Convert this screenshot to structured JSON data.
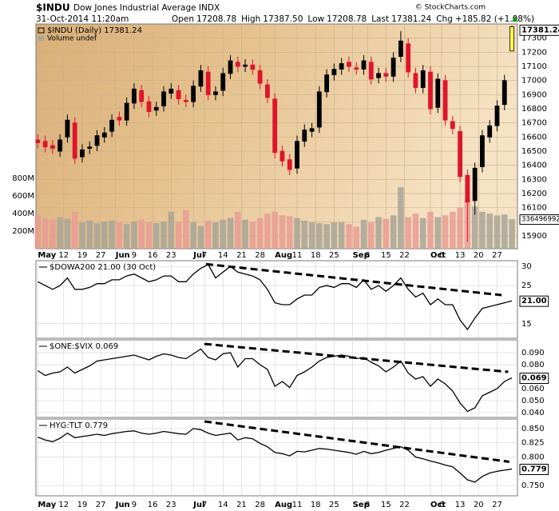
{
  "chart_data": [
    {
      "type": "candlestick",
      "title": "$INDU",
      "subtitle": "Dow Jones Industrial Average INDX",
      "date": "31-Oct-2014 11:20am",
      "quote": [
        {
          "label": "Open",
          "value": "17208.78"
        },
        {
          "label": "High",
          "value": "17387.50"
        },
        {
          "label": "Low",
          "value": "17208.78"
        },
        {
          "label": "Last",
          "value": "17381.24"
        },
        {
          "label": "Chg",
          "value": "+185.82 (+1.08%)"
        }
      ],
      "credit": "© StockCharts.com",
      "legend": [
        "$INDU (Daily) 17381.24",
        "Volume undef"
      ],
      "x": [
        0,
        2,
        4,
        6,
        8,
        10,
        12,
        14,
        16,
        18,
        20,
        22,
        24,
        26,
        28,
        30,
        32,
        34,
        36,
        38,
        40,
        42,
        44,
        46,
        48,
        50,
        52,
        54,
        56,
        58,
        60,
        62,
        64,
        66,
        68,
        70,
        72,
        74,
        76,
        78,
        80,
        82,
        84,
        86,
        88,
        90,
        92,
        94,
        96,
        98,
        100,
        102,
        104,
        106,
        108,
        110,
        112,
        114,
        116,
        118,
        120,
        122,
        124,
        126,
        128
      ],
      "xlim": [
        -0.5,
        129.5
      ],
      "xticks": [
        {
          "value": 0,
          "label": "May"
        },
        {
          "value": 7,
          "label": "12"
        },
        {
          "value": 12,
          "label": "19"
        },
        {
          "value": 17,
          "label": "27"
        },
        {
          "value": 21,
          "label": "Jun"
        },
        {
          "value": 26,
          "label": "9"
        },
        {
          "value": 31,
          "label": "16"
        },
        {
          "value": 36,
          "label": "23"
        },
        {
          "value": 42,
          "label": "Jul"
        },
        {
          "value": 45,
          "label": "7"
        },
        {
          "value": 50,
          "label": "14"
        },
        {
          "value": 55,
          "label": "21"
        },
        {
          "value": 60,
          "label": "28"
        },
        {
          "value": 64,
          "label": "Aug"
        },
        {
          "value": 70,
          "label": "11"
        },
        {
          "value": 75,
          "label": "18"
        },
        {
          "value": 80,
          "label": "25"
        },
        {
          "value": 85,
          "label": "Sep"
        },
        {
          "value": 89,
          "label": "8"
        },
        {
          "value": 94,
          "label": "15"
        },
        {
          "value": 99,
          "label": "22"
        },
        {
          "value": 106,
          "label": "Oct"
        },
        {
          "value": 109,
          "label": "6"
        },
        {
          "value": 114,
          "label": "13"
        },
        {
          "value": 119,
          "label": "20"
        },
        {
          "value": 124,
          "label": "27"
        }
      ],
      "open": [
        16580,
        16570,
        16540,
        16500,
        16600,
        16700,
        16460,
        16520,
        16540,
        16600,
        16640,
        16740,
        16720,
        16840,
        16930,
        16850,
        16790,
        16820,
        16910,
        16930,
        16860,
        16850,
        16960,
        17060,
        16900,
        16930,
        17050,
        17130,
        17100,
        17110,
        17070,
        16970,
        16870,
        16500,
        16440,
        16380,
        16570,
        16640,
        16670,
        16920,
        17040,
        17080,
        17130,
        17090,
        17080,
        17130,
        17020,
        17050,
        17030,
        17170,
        17260,
        17050,
        16950,
        17060,
        16810,
        17000,
        16710,
        16640,
        16330,
        16150,
        16390,
        16600,
        16680,
        16830,
        17208.78
      ],
      "high": [
        16620,
        16610,
        16580,
        16620,
        16760,
        16740,
        16550,
        16570,
        16650,
        16670,
        16760,
        16780,
        16880,
        16980,
        16970,
        16890,
        16850,
        16960,
        16980,
        16970,
        16900,
        17000,
        17110,
        17100,
        16960,
        17090,
        17180,
        17170,
        17150,
        17150,
        17110,
        17010,
        16910,
        16540,
        16480,
        16610,
        16690,
        16700,
        16960,
        17080,
        17120,
        17160,
        17170,
        17130,
        17180,
        17170,
        17090,
        17090,
        17200,
        17350,
        17300,
        17090,
        17110,
        17100,
        17050,
        17040,
        16750,
        16680,
        16370,
        16420,
        16650,
        16720,
        16860,
        17040,
        17387.5
      ],
      "low": [
        16520,
        16490,
        16480,
        16460,
        16560,
        16410,
        16420,
        16480,
        16500,
        16560,
        16600,
        16680,
        16680,
        16800,
        16810,
        16740,
        16750,
        16780,
        16870,
        16830,
        16810,
        16810,
        16920,
        16860,
        16860,
        16890,
        17010,
        17060,
        17060,
        17040,
        16940,
        16840,
        16450,
        16390,
        16330,
        16340,
        16530,
        16600,
        16630,
        16880,
        17000,
        17040,
        17060,
        17040,
        17040,
        16970,
        16980,
        16990,
        16990,
        17130,
        17020,
        16910,
        16910,
        16760,
        16770,
        16680,
        16620,
        16280,
        15860,
        16050,
        16350,
        16560,
        16640,
        16790,
        17208.78
      ],
      "close": [
        16560,
        16530,
        16520,
        16580,
        16720,
        16450,
        16510,
        16530,
        16610,
        16630,
        16720,
        16720,
        16840,
        16940,
        16850,
        16780,
        16810,
        16920,
        16940,
        16870,
        16850,
        16960,
        17070,
        16900,
        16920,
        17050,
        17140,
        17100,
        17110,
        17080,
        16980,
        16880,
        16490,
        16430,
        16370,
        16570,
        16650,
        16660,
        16920,
        17040,
        17080,
        17120,
        17100,
        17080,
        17140,
        17010,
        17050,
        17030,
        17160,
        17280,
        17060,
        16950,
        17070,
        16800,
        17010,
        16720,
        16660,
        16320,
        16140,
        16380,
        16610,
        16680,
        16820,
        17000,
        17381.24
      ],
      "volume": [
        380000000,
        350000000,
        330000000,
        360000000,
        340000000,
        420000000,
        300000000,
        320000000,
        290000000,
        310000000,
        320000000,
        300000000,
        280000000,
        310000000,
        330000000,
        300000000,
        290000000,
        310000000,
        420000000,
        300000000,
        440000000,
        300000000,
        260000000,
        320000000,
        300000000,
        330000000,
        350000000,
        420000000,
        330000000,
        310000000,
        350000000,
        400000000,
        420000000,
        380000000,
        370000000,
        350000000,
        320000000,
        300000000,
        290000000,
        280000000,
        300000000,
        300000000,
        280000000,
        250000000,
        330000000,
        300000000,
        360000000,
        340000000,
        380000000,
        700000000,
        360000000,
        400000000,
        350000000,
        420000000,
        360000000,
        380000000,
        420000000,
        470000000,
        560000000,
        480000000,
        420000000,
        400000000,
        380000000,
        390000000,
        336496992
      ],
      "ylim": [
        15810,
        17400
      ],
      "yticks": [
        15900,
        16000,
        16100,
        16200,
        16300,
        16400,
        16500,
        16600,
        16700,
        16800,
        16900,
        17000,
        17100,
        17200,
        17300
      ],
      "volume_lim": [
        0,
        2560000000
      ],
      "volume_ticks": [
        {
          "value": 200000000,
          "label": "200M"
        },
        {
          "value": 400000000,
          "label": "400M"
        },
        {
          "value": 600000000,
          "label": "600M"
        },
        {
          "value": 800000000,
          "label": "800M"
        }
      ],
      "up_color": "#000000",
      "down_color": "#e0142a",
      "last_color": "#ffff55",
      "volume_up_color": "#a8a498",
      "volume_down_color": "#e89c94",
      "grid": true
    },
    {
      "type": "line",
      "title": "$DOWA200 21.00 (30 Oct)",
      "color": "#000000",
      "values": [
        26,
        25,
        24,
        25,
        27,
        24,
        24,
        24.5,
        25.5,
        25.5,
        26.5,
        26.5,
        27.5,
        28,
        27,
        26,
        26.5,
        27.5,
        27.5,
        26,
        26,
        28,
        29.5,
        30.5,
        27,
        28.5,
        30,
        28.5,
        28,
        27.5,
        26.5,
        24,
        20.5,
        20,
        20,
        21.5,
        22.5,
        22.5,
        24.5,
        25,
        24.5,
        25.5,
        25.5,
        24.5,
        26.5,
        24,
        25,
        23.5,
        25,
        27,
        24,
        22,
        23,
        20,
        21.5,
        20,
        20,
        16,
        13.5,
        16.5,
        19,
        19.5,
        20,
        20.5,
        21
      ],
      "value_labels": [
        null,
        null,
        null,
        null,
        null,
        null,
        null,
        null,
        null,
        null,
        null,
        null,
        null,
        null,
        null,
        null,
        null,
        null,
        null,
        null,
        null,
        null,
        null,
        null,
        null,
        null,
        null,
        null,
        null,
        null,
        null,
        null,
        null,
        null,
        null,
        null,
        null,
        null,
        null,
        null,
        null,
        null,
        null,
        null,
        null,
        null,
        null,
        null,
        null,
        null,
        null,
        null,
        null,
        null,
        null,
        null,
        null,
        null,
        null,
        null,
        null,
        null,
        null,
        null,
        "21.00"
      ],
      "trendline": {
        "x": [
          45.4,
          125.2
        ],
        "y": [
          30.6,
          22.5
        ]
      },
      "ylim": [
        11.2,
        31.5
      ],
      "yticks": [
        15,
        25,
        30
      ],
      "grid": true
    },
    {
      "type": "line",
      "title": "$ONE:$VIX 0.069",
      "color": "#000000",
      "values": [
        0.075,
        0.071,
        0.073,
        0.074,
        0.078,
        0.073,
        0.076,
        0.079,
        0.083,
        0.084,
        0.085,
        0.086,
        0.087,
        0.088,
        0.086,
        0.084,
        0.087,
        0.089,
        0.088,
        0.086,
        0.085,
        0.089,
        0.093,
        0.086,
        0.084,
        0.089,
        0.09,
        0.078,
        0.085,
        0.085,
        0.08,
        0.076,
        0.062,
        0.066,
        0.061,
        0.071,
        0.074,
        0.078,
        0.083,
        0.086,
        0.087,
        0.088,
        0.087,
        0.085,
        0.086,
        0.082,
        0.079,
        0.074,
        0.078,
        0.083,
        0.073,
        0.068,
        0.07,
        0.062,
        0.068,
        0.064,
        0.058,
        0.048,
        0.041,
        0.044,
        0.054,
        0.057,
        0.06,
        0.066,
        0.069
      ],
      "value_labels": [
        null,
        null,
        null,
        null,
        null,
        null,
        null,
        null,
        null,
        null,
        null,
        null,
        null,
        null,
        null,
        null,
        null,
        null,
        null,
        null,
        null,
        null,
        null,
        null,
        null,
        null,
        null,
        null,
        null,
        null,
        null,
        null,
        null,
        null,
        null,
        null,
        null,
        null,
        null,
        null,
        null,
        null,
        null,
        null,
        null,
        null,
        null,
        null,
        null,
        null,
        null,
        null,
        null,
        null,
        null,
        null,
        null,
        null,
        null,
        null,
        null,
        null,
        null,
        null,
        "0.069"
      ],
      "trendline": {
        "x": [
          45,
          127
        ],
        "y": [
          0.0973,
          0.074
        ]
      },
      "ylim": [
        0.036,
        0.1007
      ],
      "yticks": [
        {
          "value": 0.04,
          "label": "0.040"
        },
        {
          "value": 0.05,
          "label": "0.050"
        },
        {
          "value": 0.06,
          "label": "0.060"
        },
        {
          "value": 0.08,
          "label": "0.080"
        },
        {
          "value": 0.09,
          "label": "0.090"
        }
      ],
      "grid": true
    },
    {
      "type": "line",
      "title": "HYG:TLT 0.779",
      "color": "#000000",
      "values": [
        0.835,
        0.83,
        0.827,
        0.833,
        0.842,
        0.834,
        0.836,
        0.838,
        0.84,
        0.838,
        0.841,
        0.843,
        0.845,
        0.846,
        0.842,
        0.84,
        0.842,
        0.845,
        0.843,
        0.841,
        0.84,
        0.85,
        0.848,
        0.842,
        0.838,
        0.84,
        0.842,
        0.83,
        0.834,
        0.832,
        0.824,
        0.818,
        0.808,
        0.806,
        0.802,
        0.81,
        0.809,
        0.812,
        0.815,
        0.814,
        0.812,
        0.81,
        0.808,
        0.805,
        0.81,
        0.806,
        0.808,
        0.812,
        0.815,
        0.818,
        0.812,
        0.8,
        0.797,
        0.793,
        0.79,
        0.786,
        0.783,
        0.772,
        0.76,
        0.756,
        0.766,
        0.772,
        0.775,
        0.777,
        0.779
      ],
      "value_labels": [
        null,
        null,
        null,
        null,
        null,
        null,
        null,
        null,
        null,
        null,
        null,
        null,
        null,
        null,
        null,
        null,
        null,
        null,
        null,
        null,
        null,
        null,
        null,
        null,
        null,
        null,
        null,
        null,
        null,
        null,
        null,
        null,
        null,
        null,
        null,
        null,
        null,
        null,
        null,
        null,
        null,
        null,
        null,
        null,
        null,
        null,
        null,
        null,
        null,
        null,
        null,
        null,
        null,
        null,
        null,
        null,
        null,
        null,
        null,
        null,
        null,
        null,
        null,
        null,
        "0.779"
      ],
      "trendline": {
        "x": [
          45,
          127.3
        ],
        "y": [
          0.8625,
          0.7917
        ]
      },
      "ylim": [
        0.732,
        0.8667
      ],
      "yticks": [
        {
          "value": 0.75,
          "label": "0.750"
        },
        {
          "value": 0.8,
          "label": "0.800"
        },
        {
          "value": 0.825,
          "label": "0.825"
        },
        {
          "value": 0.85,
          "label": "0.850"
        }
      ],
      "grid": true
    }
  ]
}
